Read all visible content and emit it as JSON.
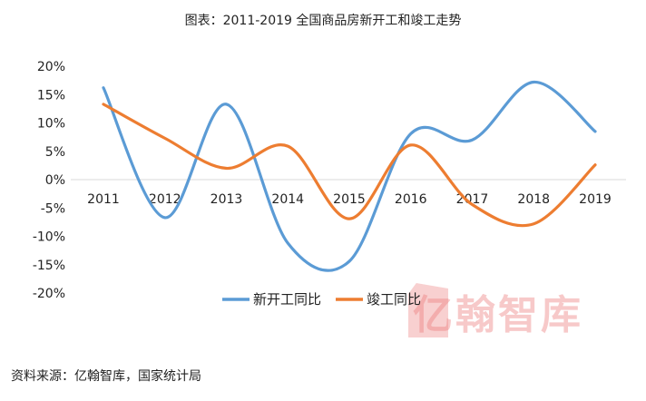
{
  "title": "图表：2011-2019 全国商品房新开工和竣工走势",
  "source": "资料来源：亿翰智库，国家统计局",
  "watermark": "亿翰智库",
  "chart_data": {
    "type": "line",
    "title": "图表：2011-2019 全国商品房新开工和竣工走势",
    "categories": [
      "2011",
      "2012",
      "2013",
      "2014",
      "2015",
      "2016",
      "2017",
      "2018",
      "2019"
    ],
    "y_ticks": [
      "20%",
      "15%",
      "10%",
      "5%",
      "0%",
      "-5%",
      "-10%",
      "-15%",
      "-20%"
    ],
    "ylim": [
      -20,
      20
    ],
    "grid": false,
    "smooth": true,
    "legend": "bottom",
    "series": [
      {
        "name": "新开工同比",
        "color": "#5B9BD5",
        "values": [
          16.2,
          -6.7,
          13.3,
          -11.2,
          -14.4,
          8.1,
          7.0,
          17.2,
          8.5
        ]
      },
      {
        "name": "竣工同比",
        "color": "#ED7D31",
        "values": [
          13.3,
          7.3,
          2.0,
          5.9,
          -6.9,
          6.1,
          -4.4,
          -7.8,
          2.6
        ]
      }
    ]
  }
}
